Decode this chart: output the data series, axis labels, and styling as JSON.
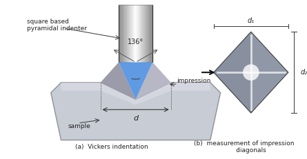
{
  "bg_color": "#ffffff",
  "title": "",
  "fig_width": 4.45,
  "fig_height": 2.31,
  "dpi": 100,
  "label_square_based": "square based\npyramidal indenter",
  "label_angle": "136°",
  "label_d": "d",
  "label_impression": "impression",
  "label_sample": "sample",
  "label_a": "(a)  Vickers indentation",
  "label_b": "(b)  measurement of impression\n       diagonals",
  "label_d1": "d₁",
  "label_d2": "d₂",
  "indenter_color_top": "#c8c8c8",
  "indenter_color_mid": "#e8e8e8",
  "indenter_color_bot": "#a0a0a0",
  "blue_color": "#3060c0",
  "sample_color": "#c8ccd0",
  "sample_edge": "#a0a4a8",
  "diamond_color_center": "#ffffff",
  "diamond_color_edge": "#808080"
}
